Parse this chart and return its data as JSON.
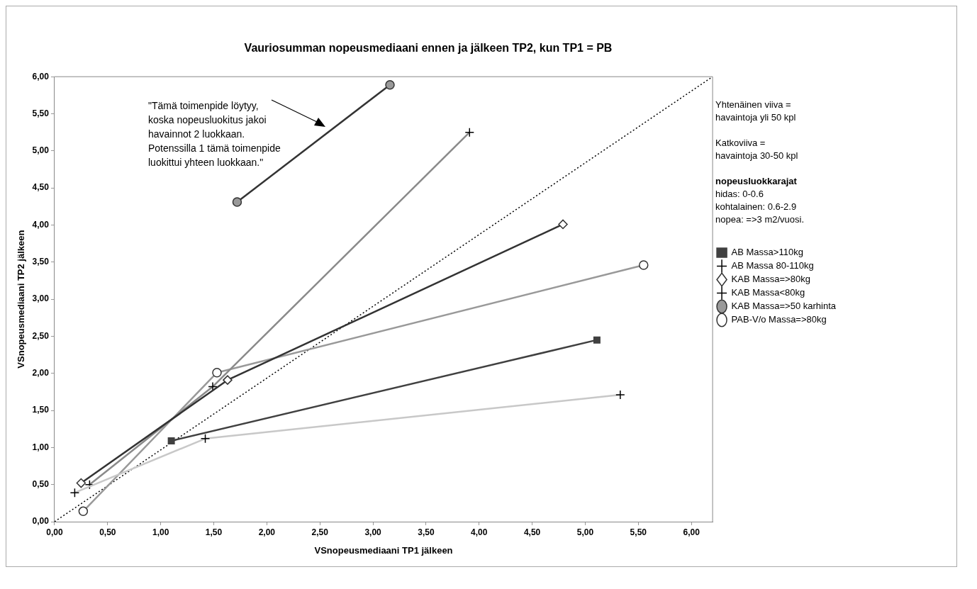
{
  "chart_data": {
    "type": "line",
    "title": "Vauriosumman nopeusmediaani ennen ja jälkeen TP2, kun TP1 = PB",
    "xlabel": "VSnopeusmediaani TP1 jälkeen",
    "ylabel": "VSnopeusmediaani TP2 jälkeen",
    "xlim": [
      0,
      6.2
    ],
    "ylim": [
      0,
      6
    ],
    "xticks": [
      {
        "value": 0,
        "label": "0,00"
      },
      {
        "value": 0.5,
        "label": "0,50"
      },
      {
        "value": 1,
        "label": "1,00"
      },
      {
        "value": 1.5,
        "label": "1,50"
      },
      {
        "value": 2,
        "label": "2,00"
      },
      {
        "value": 2.5,
        "label": "2,50"
      },
      {
        "value": 3,
        "label": "3,00"
      },
      {
        "value": 3.5,
        "label": "3,50"
      },
      {
        "value": 4,
        "label": "4,00"
      },
      {
        "value": 4.5,
        "label": "4,50"
      },
      {
        "value": 5,
        "label": "5,00"
      },
      {
        "value": 5.5,
        "label": "5,50"
      },
      {
        "value": 6,
        "label": "6,00"
      }
    ],
    "yticks": [
      {
        "value": 0,
        "label": "0,00"
      },
      {
        "value": 0.5,
        "label": "0,50"
      },
      {
        "value": 1,
        "label": "1,00"
      },
      {
        "value": 1.5,
        "label": "1,50"
      },
      {
        "value": 2,
        "label": "2,00"
      },
      {
        "value": 2.5,
        "label": "2,50"
      },
      {
        "value": 3,
        "label": "3,00"
      },
      {
        "value": 3.5,
        "label": "3,50"
      },
      {
        "value": 4,
        "label": "4,00"
      },
      {
        "value": 4.5,
        "label": "4,50"
      },
      {
        "value": 5,
        "label": "5,00"
      },
      {
        "value": 5.5,
        "label": "5,50"
      },
      {
        "value": 6,
        "label": "6,00"
      }
    ],
    "grid": false,
    "legend": "right",
    "series": [
      {
        "name": "AB Massa>110kg",
        "color": "#404040",
        "marker": "square",
        "x": [
          1.1,
          5.11
        ],
        "values": [
          1.09,
          2.45
        ]
      },
      {
        "name": "AB Massa 80-110kg",
        "color": "#c8c8c8",
        "marker": "cross",
        "x": [
          0.19,
          1.42,
          5.33
        ],
        "values": [
          0.39,
          1.12,
          1.71
        ]
      },
      {
        "name": "KAB Massa=>80kg",
        "color": "#333333",
        "marker": "diamond",
        "x": [
          0.25,
          1.63,
          4.79
        ],
        "values": [
          0.52,
          1.91,
          4.01
        ]
      },
      {
        "name": "KAB Massa<80kg",
        "color": "#8a8a8a",
        "marker": "cross",
        "x": [
          0.33,
          1.49,
          3.91
        ],
        "values": [
          0.5,
          1.82,
          5.25
        ]
      },
      {
        "name": "KAB Massa=>50 karhinta",
        "color": "#333333",
        "marker": "circle",
        "x": [
          1.72,
          3.16
        ],
        "values": [
          4.31,
          5.89
        ]
      },
      {
        "name": "PAB-V/o Massa=>80kg",
        "color": "#999999",
        "marker": "circle",
        "x": [
          0.27,
          1.53,
          5.55
        ],
        "values": [
          0.14,
          2.01,
          3.46
        ]
      },
      {
        "color": "#000000",
        "marker": "none",
        "line_style": "dotted",
        "x": [
          0,
          6.2
        ],
        "values": [
          0,
          6
        ]
      }
    ],
    "annotations": [
      "\"Tämä toimenpide löytyy,\nkoska nopeusluokitus jakoi\nhavainnot 2 luokkaan.\nPotenssilla 1 tämä toimenpide\nluokittui yhteen luokkaan.\"",
      "Yhtenäinen viiva =\nhavaintoja yli 50 kpl",
      "Katkoviiva =\nhavaintoja 30-50 kpl",
      "nopeusluokkarajat",
      "hidas: 0-0.6\nkohtalainen: 0.6-2.9\nnopea: =>3 m2/vuosi."
    ]
  }
}
